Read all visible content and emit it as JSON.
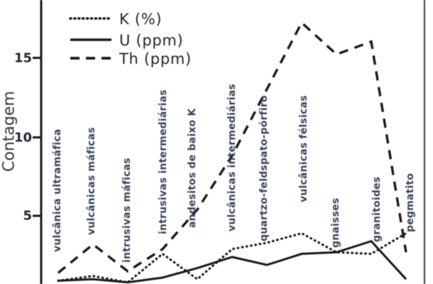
{
  "figure": {
    "background": "#ffffff",
    "line_color": "#191919",
    "category_label_color": "#3a4458",
    "tick_label_color": "#23262e",
    "legend_text_color": "#20242c"
  },
  "y_axis": {
    "title": "Contagem",
    "tick_labels": [
      "5",
      "10",
      "15"
    ]
  },
  "legend": {
    "items": [
      {
        "label": "K (%)",
        "style": "dotted"
      },
      {
        "label": "U (ppm)",
        "style": "solid"
      },
      {
        "label": "Th (ppm)",
        "style": "dashed"
      }
    ]
  },
  "chart_data": {
    "type": "line",
    "title": "",
    "xlabel": "",
    "ylabel": "Contagem",
    "grid": false,
    "legend_position": "upper left inside",
    "yticks": [
      5,
      10,
      15
    ],
    "ylim": [
      0,
      18
    ],
    "categories": [
      "vulcânica ultramáfica",
      "vulcânicas máficas",
      "intrusivas máficas",
      "intrusivas intermediárias",
      "andesitos de baixo K",
      "vulcânicas intermediárias",
      "quartzo-feldspato-pórfiro",
      "vulcânicas félsicas",
      "gnaisses",
      "granitoides",
      "pegmatito"
    ],
    "series": [
      {
        "name": "K (%)",
        "style": "dotted",
        "values": [
          0.9,
          1.2,
          0.8,
          2.6,
          1.0,
          2.9,
          3.3,
          3.9,
          2.7,
          2.6,
          3.9
        ]
      },
      {
        "name": "U (ppm)",
        "style": "solid",
        "values": [
          0.9,
          1.0,
          0.8,
          1.1,
          1.7,
          2.4,
          1.9,
          2.6,
          2.7,
          3.4,
          1.0
        ]
      },
      {
        "name": "Th (ppm)",
        "style": "dashed",
        "values": [
          1.4,
          3.2,
          1.5,
          2.9,
          5.4,
          8.8,
          13.0,
          17.2,
          15.2,
          16.0,
          2.7
        ]
      }
    ]
  }
}
